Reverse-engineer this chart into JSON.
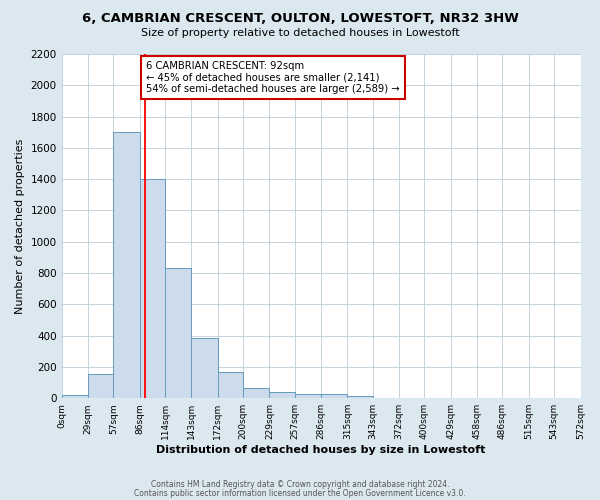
{
  "title": "6, CAMBRIAN CRESCENT, OULTON, LOWESTOFT, NR32 3HW",
  "subtitle": "Size of property relative to detached houses in Lowestoft",
  "xlabel": "Distribution of detached houses by size in Lowestoft",
  "ylabel": "Number of detached properties",
  "bar_values": [
    20,
    155,
    1700,
    1400,
    830,
    385,
    165,
    65,
    40,
    30,
    30,
    15,
    0,
    0,
    0,
    0,
    0,
    0,
    0,
    0
  ],
  "bin_edges": [
    0,
    29,
    57,
    86,
    114,
    143,
    172,
    200,
    229,
    257,
    286,
    315,
    343,
    372,
    400,
    429,
    458,
    486,
    515,
    543,
    572
  ],
  "tick_labels": [
    "0sqm",
    "29sqm",
    "57sqm",
    "86sqm",
    "114sqm",
    "143sqm",
    "172sqm",
    "200sqm",
    "229sqm",
    "257sqm",
    "286sqm",
    "315sqm",
    "343sqm",
    "372sqm",
    "400sqm",
    "429sqm",
    "458sqm",
    "486sqm",
    "515sqm",
    "543sqm",
    "572sqm"
  ],
  "bar_color": "#cddcec",
  "bar_edge_color": "#6699bb",
  "vline_x": 92,
  "vline_color": "red",
  "annotation_title": "6 CAMBRIAN CRESCENT: 92sqm",
  "annotation_line1": "← 45% of detached houses are smaller (2,141)",
  "annotation_line2": "54% of semi-detached houses are larger (2,589) →",
  "annotation_box_facecolor": "white",
  "annotation_box_edgecolor": "#cc0000",
  "ylim": [
    0,
    2200
  ],
  "yticks": [
    0,
    200,
    400,
    600,
    800,
    1000,
    1200,
    1400,
    1600,
    1800,
    2000,
    2200
  ],
  "grid_color": "#bbccd8",
  "plot_bg_color": "#ffffff",
  "fig_bg_color": "#dce8f0",
  "footer1": "Contains HM Land Registry data © Crown copyright and database right 2024.",
  "footer2": "Contains public sector information licensed under the Open Government Licence v3.0."
}
